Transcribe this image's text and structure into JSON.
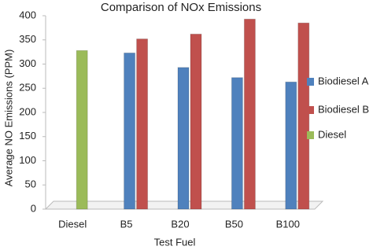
{
  "chart_data": {
    "type": "bar",
    "title": "Comparison of NOx Emissions",
    "x_label": "Test Fuel",
    "y_label": "Average NO Emissions (PPM)",
    "categories": [
      "Diesel",
      "B5",
      "B20",
      "B50",
      "B100"
    ],
    "series": [
      {
        "name": "Biodiesel A",
        "color": "#4f81bd",
        "values": [
          null,
          323,
          293,
          272,
          263
        ]
      },
      {
        "name": "Biodiesel B",
        "color": "#c0504d",
        "values": [
          null,
          352,
          362,
          393,
          385
        ]
      },
      {
        "name": "Diesel",
        "color": "#9bbb59",
        "values": [
          328,
          null,
          null,
          null,
          null
        ]
      }
    ],
    "ylim": [
      0,
      400
    ],
    "yticks": [
      0,
      50,
      100,
      150,
      200,
      250,
      300,
      350,
      400
    ],
    "grid": false
  }
}
